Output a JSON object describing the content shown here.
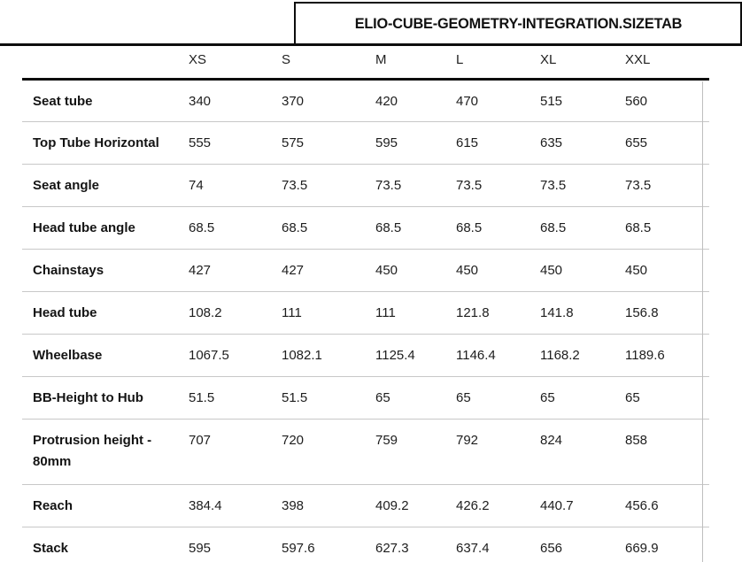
{
  "title_tab": {
    "label": "ELIO-CUBE-GEOMETRY-INTEGRATION.SIZETAB"
  },
  "geometry_table": {
    "size_columns": [
      "XS",
      "S",
      "M",
      "L",
      "XL",
      "XXL"
    ],
    "rows": [
      {
        "label": "Seat tube",
        "values": [
          "340",
          "370",
          "420",
          "470",
          "515",
          "560"
        ]
      },
      {
        "label": "Top Tube Horizontal",
        "values": [
          "555",
          "575",
          "595",
          "615",
          "635",
          "655"
        ]
      },
      {
        "label": "Seat angle",
        "values": [
          "74",
          "73.5",
          "73.5",
          "73.5",
          "73.5",
          "73.5"
        ]
      },
      {
        "label": "Head tube angle",
        "values": [
          "68.5",
          "68.5",
          "68.5",
          "68.5",
          "68.5",
          "68.5"
        ]
      },
      {
        "label": "Chainstays",
        "values": [
          "427",
          "427",
          "450",
          "450",
          "450",
          "450"
        ]
      },
      {
        "label": "Head tube",
        "values": [
          "108.2",
          "111",
          "111",
          "121.8",
          "141.8",
          "156.8"
        ]
      },
      {
        "label": "Wheelbase",
        "values": [
          "1067.5",
          "1082.1",
          "1125.4",
          "1146.4",
          "1168.2",
          "1189.6"
        ]
      },
      {
        "label": "BB-Height to Hub",
        "values": [
          "51.5",
          "51.5",
          "65",
          "65",
          "65",
          "65"
        ]
      },
      {
        "label": "Protrusion height -\n80mm",
        "values": [
          "707",
          "720",
          "759",
          "792",
          "824",
          "858"
        ]
      },
      {
        "label": "Reach",
        "values": [
          "384.4",
          "398",
          "409.2",
          "426.2",
          "440.7",
          "456.6"
        ]
      },
      {
        "label": "Stack",
        "values": [
          "595",
          "597.6",
          "627.3",
          "637.4",
          "656",
          "669.9"
        ]
      }
    ],
    "tall_row_index": 8
  },
  "colors": {
    "rule_black": "#0d0d0d",
    "separator_gray": "#c8c8c8",
    "text": "#1a1a1a",
    "background": "#ffffff"
  }
}
